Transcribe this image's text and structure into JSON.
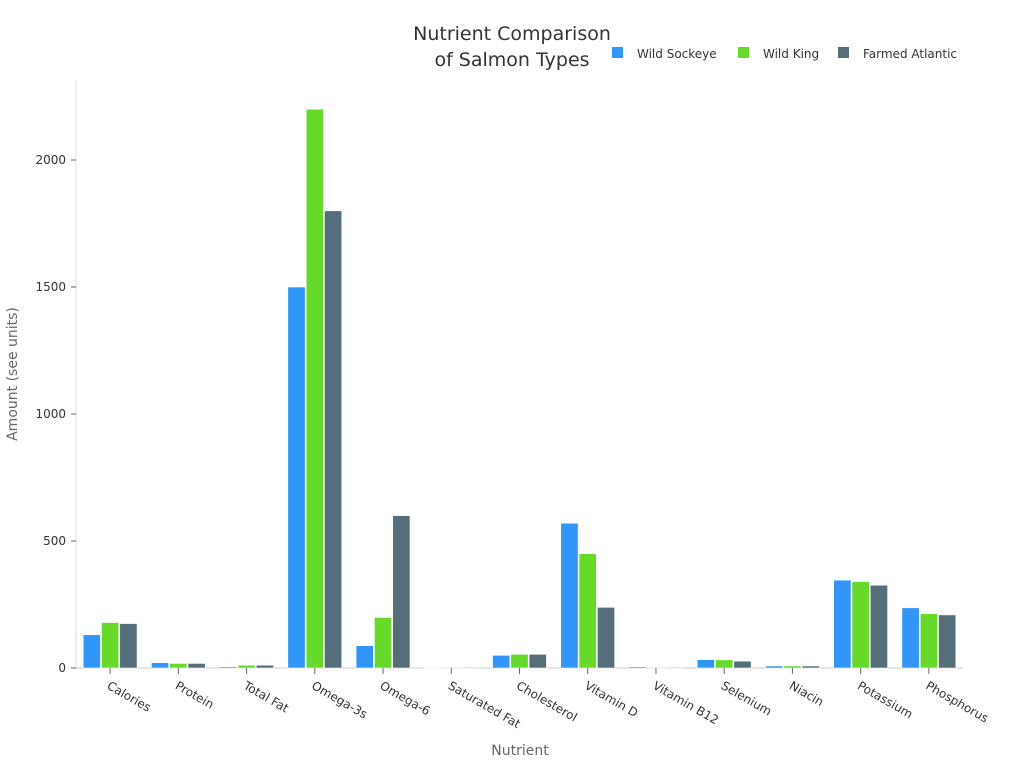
{
  "chart_data": {
    "type": "bar",
    "title": "Nutrient Comparison\nof Salmon Types",
    "xlabel": "Nutrient",
    "ylabel": "Amount (see units)",
    "ylim": [
      0,
      2315
    ],
    "yticks": [
      0,
      500,
      1000,
      1500,
      2000
    ],
    "grid": false,
    "legend_position": "top-right",
    "categories": [
      "Calories",
      "Protein",
      "Total Fat",
      "Omega-3s",
      "Omega-6",
      "Saturated Fat",
      "Cholesterol",
      "Vitamin D",
      "Vitamin B12",
      "Selenium",
      "Niacin",
      "Potassium",
      "Phosphorus"
    ],
    "series": [
      {
        "name": "Wild Sockeye",
        "color": "#3196f7",
        "values": [
          131,
          21,
          5,
          1500,
          88,
          1,
          50,
          570,
          5,
          33,
          8,
          346,
          237
        ]
      },
      {
        "name": "Wild King",
        "color": "#66d92a",
        "values": [
          179,
          18,
          11,
          2200,
          199,
          3,
          54,
          450,
          3,
          32,
          8,
          340,
          214
        ]
      },
      {
        "name": "Farmed Atlantic",
        "color": "#546e7a",
        "values": [
          175,
          18,
          11,
          1800,
          600,
          3,
          54,
          239,
          3,
          27,
          8,
          326,
          209
        ]
      }
    ]
  }
}
